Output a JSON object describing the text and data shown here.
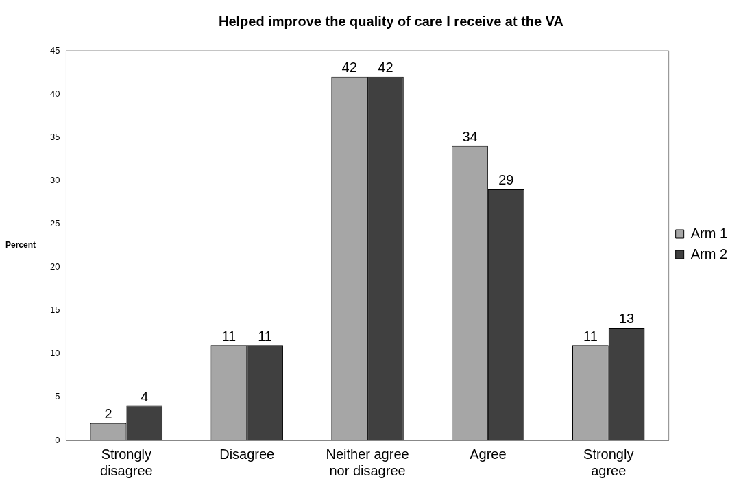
{
  "chart_data": {
    "type": "bar",
    "title": "Helped improve the quality of care I receive at the VA",
    "ylabel": "Percent",
    "categories": [
      "Strongly disagree",
      "Disagree",
      "Neither agree nor disagree",
      "Agree",
      "Strongly agree"
    ],
    "series": [
      {
        "name": "Arm 1",
        "color": "#a6a6a6",
        "values": [
          2,
          11,
          42,
          34,
          11
        ]
      },
      {
        "name": "Arm 2",
        "color": "#404040",
        "values": [
          4,
          11,
          42,
          29,
          13
        ]
      }
    ],
    "ylim": [
      0,
      45
    ],
    "yticks": [
      0,
      5,
      10,
      15,
      20,
      25,
      30,
      35,
      40,
      45
    ],
    "grid": false,
    "legend": "right",
    "data_labels": true
  }
}
